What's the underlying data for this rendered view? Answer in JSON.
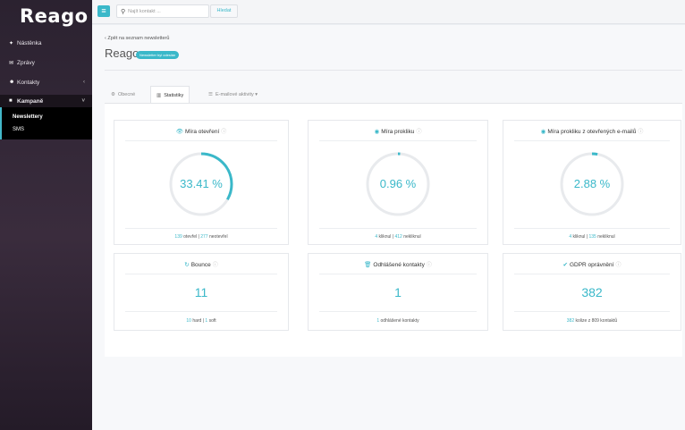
{
  "app": {
    "logo": "Reago"
  },
  "sidebar": {
    "items": [
      {
        "label": "Nástěnka",
        "icon": "pin-icon"
      },
      {
        "label": "Zprávy",
        "icon": "envelope-icon"
      },
      {
        "label": "Kontakty",
        "icon": "users-icon"
      },
      {
        "label": "Kampaně",
        "icon": "book-icon"
      }
    ],
    "sub_items": [
      {
        "label": "Newslettery"
      },
      {
        "label": "SMS"
      }
    ]
  },
  "topbar": {
    "search_placeholder": "Najít kontakt ...",
    "search_button": "Hledat"
  },
  "header": {
    "back_link": "‹ Zpět na seznam newsletterů",
    "title": "Reago",
    "badge": "Newsletter byl odeslán"
  },
  "tabs": [
    {
      "label": "Obecné",
      "icon": "gear-icon"
    },
    {
      "label": "Statistiky",
      "icon": "chart-icon"
    },
    {
      "label": "E-mailové aktivity ▾",
      "icon": "list-icon"
    }
  ],
  "cards": {
    "open_rate": {
      "title": "Míra otevření",
      "value": "33.41 %",
      "fraction": 0.3341,
      "foot_a": "139",
      "foot_a_label": "otevřel",
      "foot_b": "277",
      "foot_b_label": "neotevřel"
    },
    "click_rate": {
      "title": "Míra prokliku",
      "value": "0.96 %",
      "fraction": 0.0096,
      "foot_a": "4",
      "foot_a_label": "kliknul",
      "foot_b": "412",
      "foot_b_label": "nekliknul"
    },
    "click_open_rate": {
      "title": "Míra prokliku z otevřených e-mailů",
      "value": "2.88 %",
      "fraction": 0.0288,
      "foot_a": "4",
      "foot_a_label": "kliknul",
      "foot_b": "135",
      "foot_b_label": "nekliknul"
    },
    "bounce": {
      "title": "Bounce",
      "value": "11",
      "foot_a": "10",
      "foot_a_label": "hard",
      "foot_b": "1",
      "foot_b_label": "soft"
    },
    "unsubscribed": {
      "title": "Odhlášené kontakty",
      "value": "1",
      "foot_a": "1",
      "foot_a_label": "odhlášené kontakty"
    },
    "gdpr": {
      "title": "GDPR oprávnění",
      "value": "382",
      "foot_a": "382",
      "foot_a_label": "kolize z 809 kontaktů"
    }
  },
  "colors": {
    "accent": "#3ab8c9",
    "sidebar": "#2b2230"
  }
}
